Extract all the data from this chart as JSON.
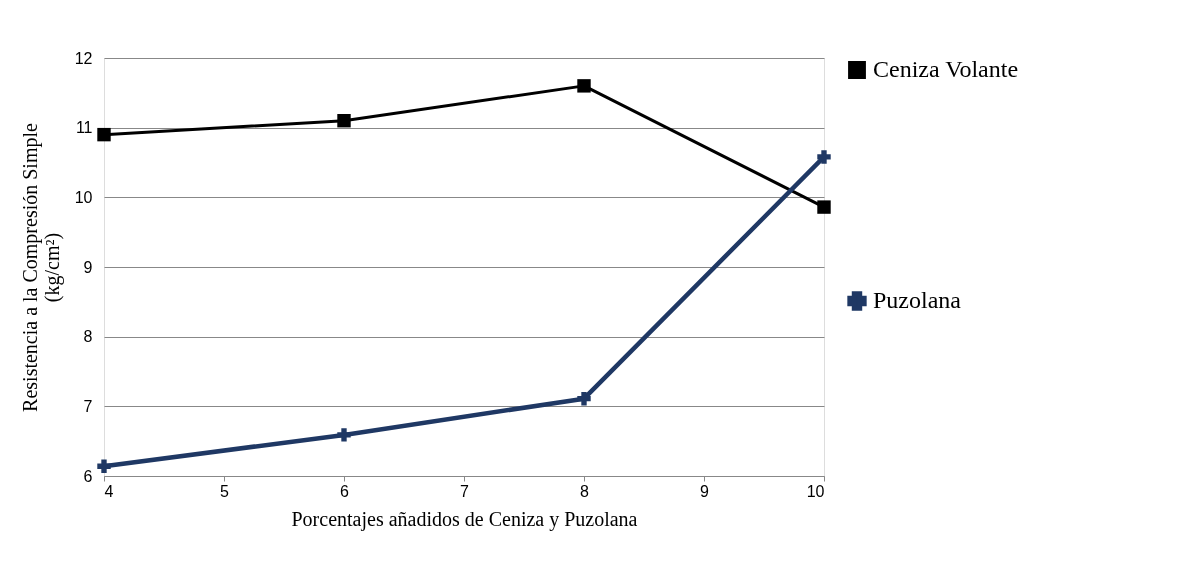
{
  "chart_data": {
    "type": "line",
    "xlabel": "Porcentajes añadidos de Ceniza y Puzolana",
    "ylabel": "Resistencia a la Compresión Simple\n(kg/cm²)",
    "x": [
      4,
      6,
      8,
      10
    ],
    "series": [
      {
        "name": "Ceniza Volante",
        "color": "#000000",
        "marker": "square",
        "values": [
          10.9,
          11.1,
          11.6,
          9.86
        ]
      },
      {
        "name": "Puzolana",
        "color": "#1f3864",
        "marker": "cross",
        "values": [
          6.14,
          6.59,
          7.11,
          10.58
        ]
      }
    ],
    "xlim": [
      4,
      10
    ],
    "xticks": [
      4,
      5,
      6,
      7,
      8,
      9,
      10
    ],
    "ylim": [
      6,
      12
    ],
    "yticks": [
      6,
      7,
      8,
      9,
      10,
      11,
      12
    ],
    "grid": "y",
    "legend": "right",
    "line_style": "solid"
  }
}
